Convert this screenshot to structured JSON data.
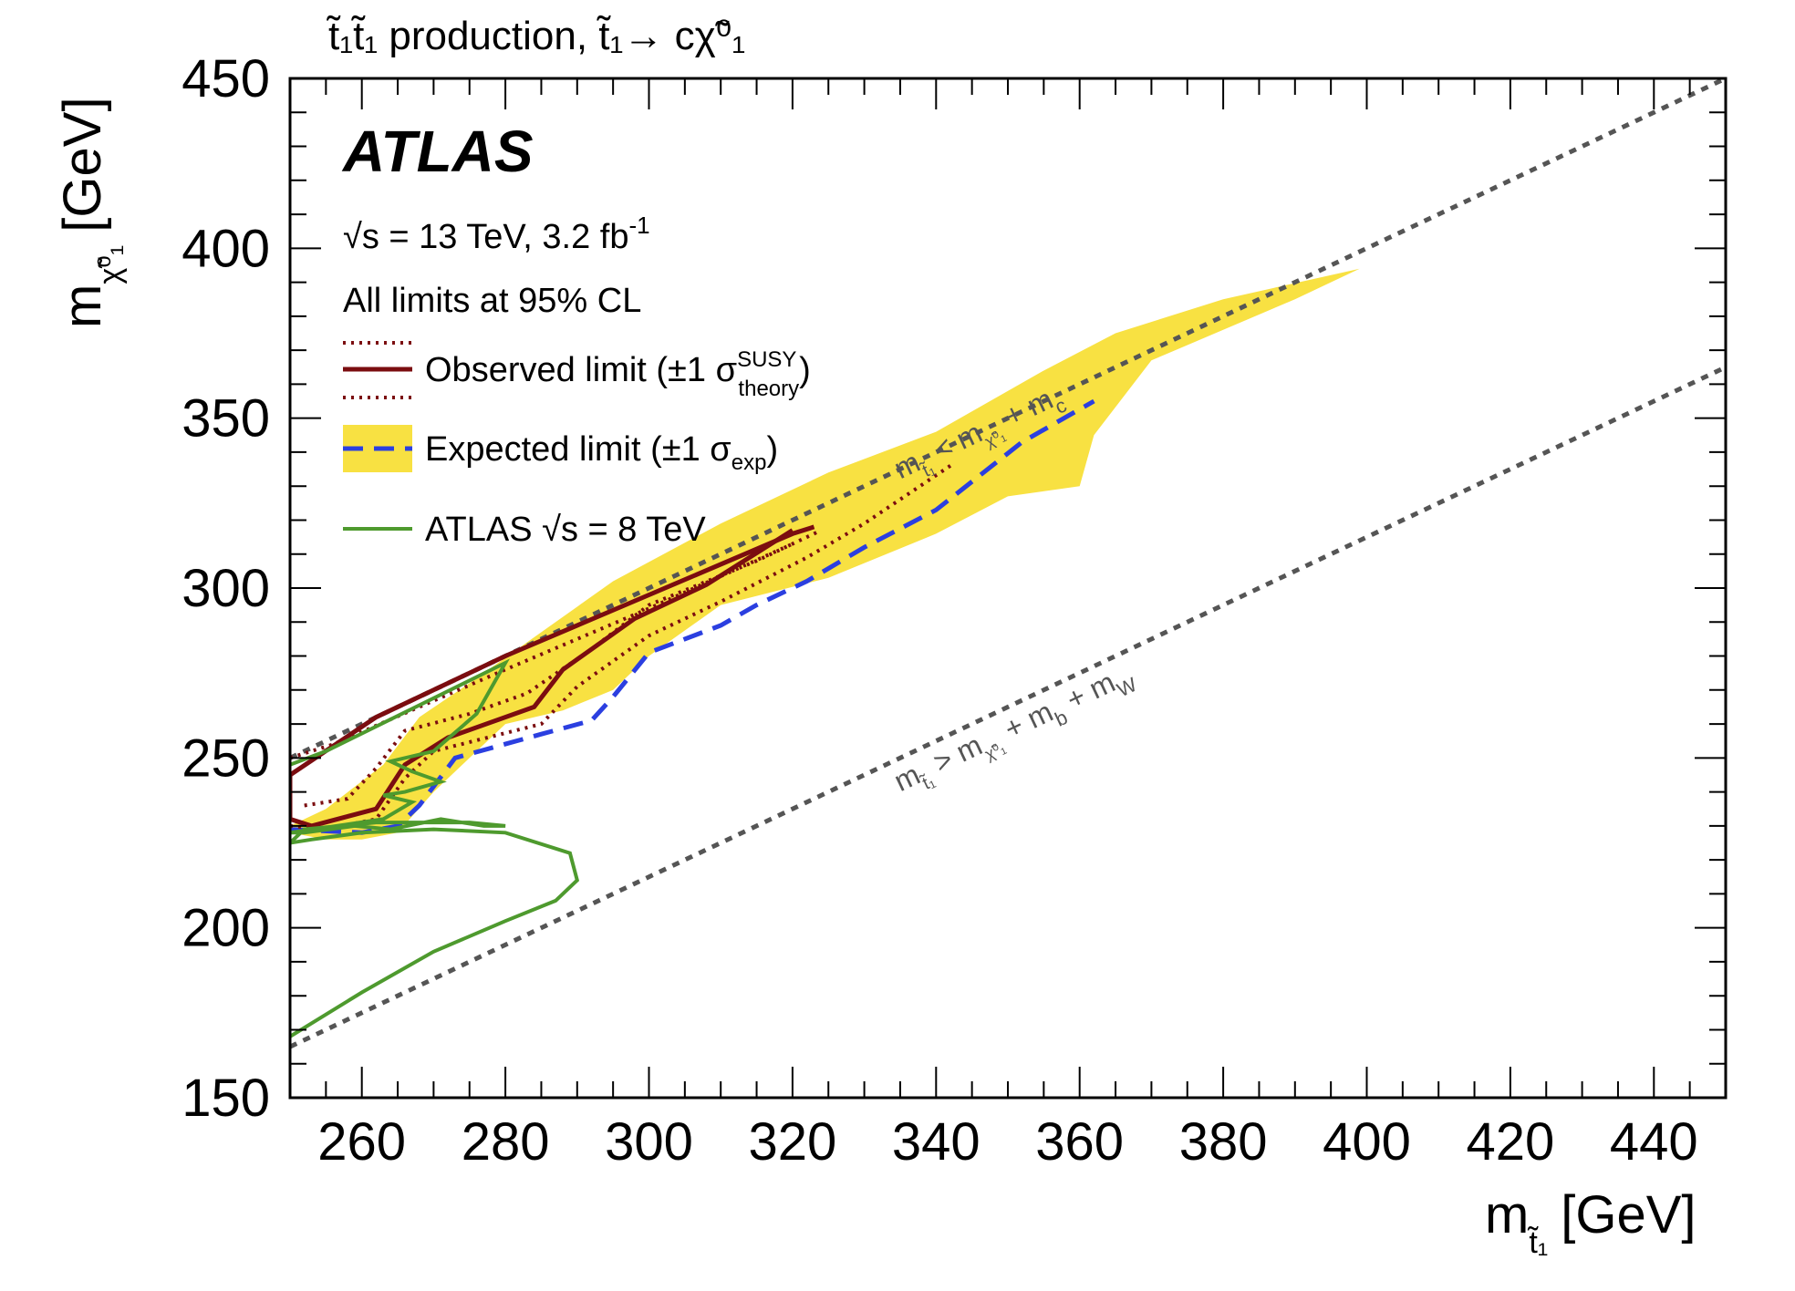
{
  "chart_data": {
    "type": "line",
    "title": "t̃₁t̃₁ production, t̃₁→ cχ̃⁰₁",
    "experiment": "ATLAS",
    "energy_label": "√s = 13 TeV, 3.2 fb",
    "energy_label_sup": "-1",
    "cl_label": "All limits at 95% CL",
    "xlabel": "m",
    "xlabel_sub": "t̃₁",
    "xlabel_unit": "[GeV]",
    "ylabel": "m",
    "ylabel_sub": "χ̃⁰₁",
    "ylabel_unit": "[GeV]",
    "xlim": [
      250,
      450
    ],
    "ylim": [
      150,
      450
    ],
    "x_ticks": [
      260,
      280,
      300,
      320,
      340,
      360,
      380,
      400,
      420,
      440
    ],
    "y_ticks": [
      150,
      200,
      250,
      300,
      350,
      400,
      450
    ],
    "grid": false,
    "legend_position": "top-left",
    "legend": [
      {
        "key": "observed",
        "label": "Observed limit (±1 σ",
        "sup": "SUSY",
        "sub": "theory",
        "close": ")"
      },
      {
        "key": "expected",
        "label": "Expected limit (±1 σ",
        "sub": "exp",
        "close": ")"
      },
      {
        "key": "atlas8",
        "label": "ATLAS √s = 8 TeV"
      }
    ],
    "colors": {
      "observed": "#7b0d10",
      "expected": "#2b3fe0",
      "band": "#f8e142",
      "atlas8": "#4e9a2e",
      "diagonal": "#555555"
    },
    "diagonals": [
      {
        "label": "m",
        "label_sub": "t̃₁",
        "rel": "<",
        "label_rest": "m",
        "rest_sub": "χ̃⁰₁",
        "rest_tail": " + m",
        "tail_sub": "c",
        "offset": 0,
        "label_x": 335,
        "label_y": 332
      },
      {
        "label": "m",
        "label_sub": "t̃₁",
        "rel": ">",
        "label_rest": "m",
        "rest_sub": "χ̃⁰₁",
        "rest_tail": " + m",
        "tail_sub": "b",
        "extra": " + m",
        "extra_sub": "W",
        "offset": 85,
        "label_x": 335,
        "label_y": 240
      }
    ],
    "series": [
      {
        "name": "Expected ±1σ band",
        "kind": "band",
        "x": [
          250,
          255,
          263,
          268,
          275,
          285,
          295,
          310,
          325,
          340,
          355,
          365,
          380,
          399,
          390,
          370,
          362,
          360,
          350,
          340,
          325,
          310,
          300,
          295,
          288,
          280,
          275,
          270,
          265,
          260,
          255,
          250
        ],
        "y": [
          230,
          235,
          248,
          262,
          272,
          287,
          302,
          319,
          334,
          346,
          364,
          375,
          385,
          394,
          385,
          367,
          345,
          330,
          327,
          316,
          303,
          295,
          280,
          270,
          264,
          260,
          250,
          240,
          228,
          226,
          226,
          228
        ]
      },
      {
        "name": "Expected limit",
        "kind": "expected",
        "x": [
          250,
          260,
          265,
          268,
          273,
          285,
          292,
          295,
          300,
          310,
          315,
          322,
          330,
          340,
          352,
          362
        ],
        "y": [
          229,
          228,
          230,
          236,
          250,
          257,
          261,
          268,
          281,
          289,
          295,
          302,
          312,
          323,
          343,
          355
        ]
      },
      {
        "name": "Observed limit",
        "kind": "observed",
        "x": [
          250,
          253,
          262,
          266,
          272,
          284,
          288,
          298,
          308,
          320
        ],
        "y": [
          232,
          230,
          235,
          248,
          256,
          265,
          276,
          291,
          301,
          317
        ]
      },
      {
        "name": "Observed boundary upper",
        "kind": "observed",
        "x": [
          250,
          262,
          280,
          300,
          320,
          323
        ],
        "y": [
          245,
          262,
          280,
          298,
          316,
          318
        ]
      },
      {
        "name": "Observed closing edge",
        "kind": "observed",
        "x": [
          250,
          250
        ],
        "y": [
          232,
          245
        ]
      },
      {
        "name": "Observed −1σ theory",
        "kind": "observed-dotted",
        "x": [
          250,
          255,
          262,
          266,
          270,
          285,
          290,
          300,
          310,
          322,
          330,
          342
        ],
        "y": [
          230,
          229,
          232,
          244,
          252,
          260,
          271,
          286,
          296,
          309,
          319,
          336
        ]
      },
      {
        "name": "Observed +1σ theory",
        "kind": "observed-dotted",
        "x": [
          252,
          258,
          262,
          266,
          275,
          283,
          292,
          300,
          315,
          324
        ],
        "y": [
          236,
          238,
          247,
          258,
          263,
          269,
          282,
          295,
          308,
          317
        ]
      },
      {
        "name": "Observed +1σ theory upper",
        "kind": "observed-dotted",
        "x": [
          250,
          256,
          280,
          300,
          320
        ],
        "y": [
          250,
          254,
          276,
          294,
          313
        ]
      },
      {
        "name": "ATLAS 8 TeV",
        "kind": "atlas8",
        "x": [
          250,
          260,
          270,
          280,
          287,
          290,
          289,
          280,
          270,
          260,
          253,
          250,
          252,
          262,
          275,
          280,
          277,
          271,
          264,
          259,
          252,
          250,
          263,
          267,
          263,
          266,
          271,
          267,
          264,
          270,
          276,
          280,
          255,
          250
        ],
        "y": [
          168,
          181,
          193,
          202,
          208,
          214,
          222,
          228,
          229,
          228,
          226,
          225,
          229,
          231,
          231,
          230,
          230,
          232,
          229,
          230,
          228,
          228,
          232,
          237,
          239,
          240,
          243,
          246,
          249,
          252,
          263,
          278,
          252,
          248
        ]
      }
    ]
  }
}
